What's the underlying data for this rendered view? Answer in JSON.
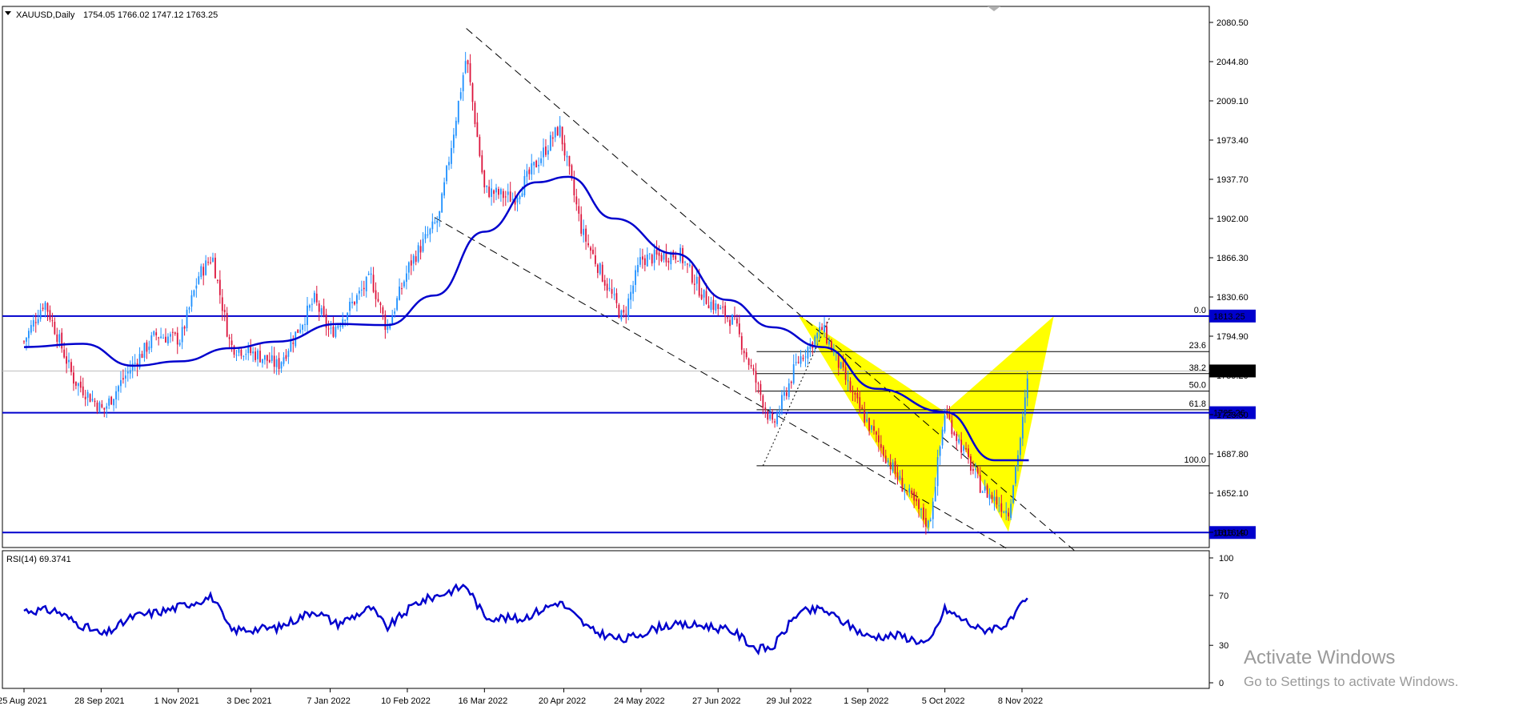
{
  "header": {
    "symbol_label": "XAUUSD,Daily",
    "ohlc": "1754.05 1766.02 1747.12 1763.25",
    "rsi_label": "RSI(14) 69.3741"
  },
  "watermark": {
    "title": "Activate Windows",
    "subtitle": "Go to Settings to activate Windows."
  },
  "colors": {
    "bull": "#1e90ff",
    "bear": "#dc143c",
    "ma": "#0000cd",
    "level": "#0000cd",
    "fib": "#000000",
    "pattern": "#ffff00",
    "rsi": "#0000cd"
  },
  "chart_data": [
    {
      "type": "candlestick",
      "name": "XAUUSD Daily",
      "ylim": [
        1600,
        2090
      ],
      "y_ticks": [
        "2080.50",
        "2044.80",
        "2009.10",
        "1973.40",
        "1937.70",
        "1902.00",
        "1866.30",
        "1830.60",
        "1794.90",
        "1759.20",
        "1723.50",
        "1687.80",
        "1652.10",
        "1616.40"
      ],
      "x_ticks": [
        "25 Aug 2021",
        "28 Sep 2021",
        "1 Nov 2021",
        "3 Dec 2021",
        "7 Jan 2022",
        "10 Feb 2022",
        "16 Mar 2022",
        "20 Apr 2022",
        "24 May 2022",
        "27 Jun 2022",
        "29 Jul 2022",
        "1 Sep 2022",
        "5 Oct 2022",
        "8 Nov 2022"
      ],
      "close_path": [
        {
          "date": "2021-08-25",
          "close": 1790
        },
        {
          "date": "2021-09-03",
          "close": 1827
        },
        {
          "date": "2021-09-16",
          "close": 1755
        },
        {
          "date": "2021-09-29",
          "close": 1727
        },
        {
          "date": "2021-10-08",
          "close": 1757
        },
        {
          "date": "2021-10-22",
          "close": 1796
        },
        {
          "date": "2021-11-02",
          "close": 1792
        },
        {
          "date": "2021-11-10",
          "close": 1850
        },
        {
          "date": "2021-11-16",
          "close": 1868
        },
        {
          "date": "2021-11-24",
          "close": 1786
        },
        {
          "date": "2021-12-06",
          "close": 1778
        },
        {
          "date": "2021-12-15",
          "close": 1768
        },
        {
          "date": "2021-12-31",
          "close": 1828
        },
        {
          "date": "2022-01-07",
          "close": 1797
        },
        {
          "date": "2022-01-25",
          "close": 1848
        },
        {
          "date": "2022-02-01",
          "close": 1801
        },
        {
          "date": "2022-02-11",
          "close": 1860
        },
        {
          "date": "2022-02-24",
          "close": 1903
        },
        {
          "date": "2022-03-08",
          "close": 2050
        },
        {
          "date": "2022-03-16",
          "close": 1928
        },
        {
          "date": "2022-03-29",
          "close": 1920
        },
        {
          "date": "2022-04-18",
          "close": 1985
        },
        {
          "date": "2022-04-28",
          "close": 1890
        },
        {
          "date": "2022-05-16",
          "close": 1810
        },
        {
          "date": "2022-05-24",
          "close": 1865
        },
        {
          "date": "2022-06-10",
          "close": 1870
        },
        {
          "date": "2022-06-21",
          "close": 1830
        },
        {
          "date": "2022-07-04",
          "close": 1808
        },
        {
          "date": "2022-07-21",
          "close": 1712
        },
        {
          "date": "2022-08-01",
          "close": 1772
        },
        {
          "date": "2022-08-12",
          "close": 1802
        },
        {
          "date": "2022-08-26",
          "close": 1738
        },
        {
          "date": "2022-09-15",
          "close": 1663
        },
        {
          "date": "2022-09-28",
          "close": 1622
        },
        {
          "date": "2022-10-05",
          "close": 1726
        },
        {
          "date": "2022-10-21",
          "close": 1657
        },
        {
          "date": "2022-11-02",
          "close": 1635
        },
        {
          "date": "2022-11-08",
          "close": 1712
        },
        {
          "date": "2022-11-11",
          "close": 1763.25
        }
      ],
      "moving_average": [
        {
          "date": "2021-08-25",
          "value": 1785
        },
        {
          "date": "2021-09-20",
          "value": 1788
        },
        {
          "date": "2021-10-12",
          "value": 1768
        },
        {
          "date": "2021-11-02",
          "value": 1772
        },
        {
          "date": "2021-11-24",
          "value": 1784
        },
        {
          "date": "2021-12-15",
          "value": 1790
        },
        {
          "date": "2022-01-10",
          "value": 1806
        },
        {
          "date": "2022-02-01",
          "value": 1805
        },
        {
          "date": "2022-02-22",
          "value": 1832
        },
        {
          "date": "2022-03-16",
          "value": 1890
        },
        {
          "date": "2022-04-08",
          "value": 1935
        },
        {
          "date": "2022-04-22",
          "value": 1940
        },
        {
          "date": "2022-05-12",
          "value": 1902
        },
        {
          "date": "2022-06-08",
          "value": 1870
        },
        {
          "date": "2022-07-01",
          "value": 1828
        },
        {
          "date": "2022-07-21",
          "value": 1803
        },
        {
          "date": "2022-08-12",
          "value": 1785
        },
        {
          "date": "2022-09-05",
          "value": 1747
        },
        {
          "date": "2022-10-05",
          "value": 1726
        },
        {
          "date": "2022-10-27",
          "value": 1682
        },
        {
          "date": "2022-11-11",
          "value": 1682
        }
      ],
      "horizontal_levels": [
        {
          "label": "1813.25",
          "value": 1813.25
        },
        {
          "label": "1725.26",
          "value": 1725.26
        },
        {
          "label": "1616.19",
          "value": 1616.19
        }
      ],
      "current_price": {
        "label": "1763.25",
        "value": 1763.25
      },
      "fibonacci": {
        "levels": [
          {
            "label": "0.0",
            "value": 1813.25
          },
          {
            "label": "23.6",
            "value": 1780.9
          },
          {
            "label": "38.2",
            "value": 1760.8
          },
          {
            "label": "50.0",
            "value": 1744.9
          },
          {
            "label": "61.8",
            "value": 1728.0
          },
          {
            "label": "100.0",
            "value": 1677.0
          }
        ]
      },
      "channel": [
        {
          "from": {
            "date": "2022-03-08",
            "value": 2075
          },
          "to": {
            "date": "2022-12-01",
            "value": 1600
          }
        },
        {
          "from": {
            "date": "2022-02-22",
            "value": 1903
          },
          "to": {
            "date": "2022-11-01",
            "value": 1602
          }
        }
      ],
      "pattern_points": [
        {
          "date": "2022-08-01",
          "value": 1815
        },
        {
          "date": "2022-09-28",
          "value": 1617
        },
        {
          "date": "2022-10-05",
          "value": 1726
        },
        {
          "date": "2022-11-02",
          "value": 1617
        },
        {
          "date": "2022-11-22",
          "value": 1813
        }
      ]
    },
    {
      "type": "line",
      "name": "RSI(14)",
      "ylim": [
        0,
        100
      ],
      "y_ticks": [
        "100",
        "70",
        "30",
        "0"
      ],
      "points": [
        {
          "date": "2021-08-25",
          "value": 58
        },
        {
          "date": "2021-09-08",
          "value": 58
        },
        {
          "date": "2021-09-16",
          "value": 49
        },
        {
          "date": "2021-09-29",
          "value": 38
        },
        {
          "date": "2021-10-12",
          "value": 53
        },
        {
          "date": "2021-10-27",
          "value": 58
        },
        {
          "date": "2021-11-16",
          "value": 69
        },
        {
          "date": "2021-11-24",
          "value": 42
        },
        {
          "date": "2021-12-15",
          "value": 44
        },
        {
          "date": "2021-12-31",
          "value": 58
        },
        {
          "date": "2022-01-10",
          "value": 47
        },
        {
          "date": "2022-01-25",
          "value": 60
        },
        {
          "date": "2022-02-01",
          "value": 44
        },
        {
          "date": "2022-02-14",
          "value": 64
        },
        {
          "date": "2022-03-08",
          "value": 78
        },
        {
          "date": "2022-03-16",
          "value": 53
        },
        {
          "date": "2022-04-01",
          "value": 51
        },
        {
          "date": "2022-04-18",
          "value": 65
        },
        {
          "date": "2022-05-02",
          "value": 42
        },
        {
          "date": "2022-05-16",
          "value": 34
        },
        {
          "date": "2022-06-03",
          "value": 46
        },
        {
          "date": "2022-06-21",
          "value": 46
        },
        {
          "date": "2022-07-04",
          "value": 41
        },
        {
          "date": "2022-07-14",
          "value": 27
        },
        {
          "date": "2022-07-21",
          "value": 28
        },
        {
          "date": "2022-08-01",
          "value": 56
        },
        {
          "date": "2022-08-12",
          "value": 59
        },
        {
          "date": "2022-09-01",
          "value": 37
        },
        {
          "date": "2022-09-15",
          "value": 38
        },
        {
          "date": "2022-09-28",
          "value": 31
        },
        {
          "date": "2022-10-05",
          "value": 59
        },
        {
          "date": "2022-10-21",
          "value": 42
        },
        {
          "date": "2022-11-02",
          "value": 47
        },
        {
          "date": "2022-11-08",
          "value": 62
        },
        {
          "date": "2022-11-11",
          "value": 69.37
        }
      ]
    }
  ]
}
